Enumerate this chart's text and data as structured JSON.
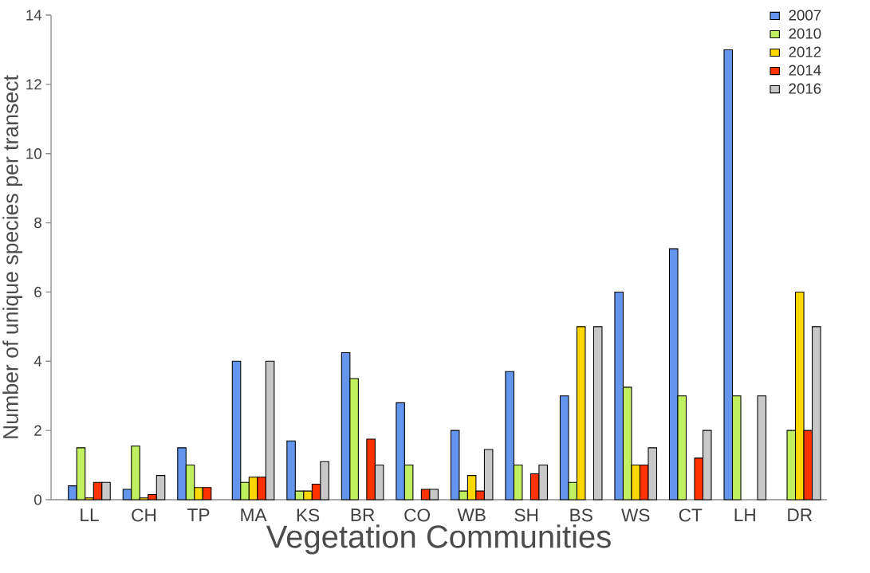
{
  "chart_data": {
    "type": "bar",
    "xlabel": "Vegetation Communities",
    "ylabel": "Number of unique species per transect",
    "categories": [
      "LL",
      "CH",
      "TP",
      "MA",
      "KS",
      "BR",
      "CO",
      "WB",
      "SH",
      "BS",
      "WS",
      "CT",
      "LH",
      "DR"
    ],
    "series": [
      {
        "name": "2007",
        "color": "#6495ed",
        "values": [
          0.4,
          0.3,
          1.5,
          4,
          1.7,
          4.25,
          2.8,
          2,
          3.7,
          3,
          6,
          7.25,
          13,
          null
        ]
      },
      {
        "name": "2010",
        "color": "#c0f060",
        "values": [
          1.5,
          1.55,
          1,
          0.5,
          0.25,
          3.5,
          1,
          0.25,
          1,
          0.5,
          3.25,
          3,
          3,
          2
        ]
      },
      {
        "name": "2012",
        "color": "#ffd700",
        "values": [
          0.05,
          0.05,
          0.35,
          0.65,
          0.25,
          null,
          null,
          0.7,
          null,
          5,
          1,
          null,
          null,
          6
        ]
      },
      {
        "name": "2014",
        "color": "#ff3300",
        "values": [
          0.5,
          0.15,
          0.35,
          0.65,
          0.45,
          1.75,
          0.3,
          0.25,
          0.75,
          null,
          1,
          1.2,
          null,
          2
        ]
      },
      {
        "name": "2016",
        "color": "#c8c8c8",
        "values": [
          0.5,
          0.7,
          null,
          4,
          1.1,
          1,
          0.3,
          1.45,
          1,
          5,
          1.5,
          2,
          3,
          5
        ]
      }
    ],
    "ylim": [
      0,
      14
    ],
    "yticks": [
      0,
      2,
      4,
      6,
      8,
      10,
      12,
      14
    ],
    "grid": false,
    "legend": "top right"
  }
}
